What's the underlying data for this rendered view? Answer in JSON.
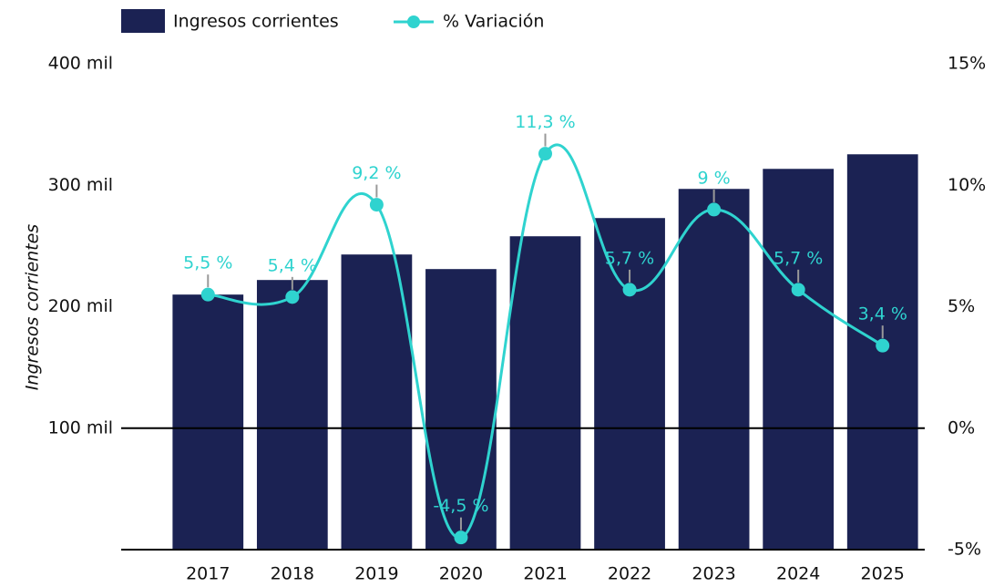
{
  "chart_data": {
    "type": "bar-line",
    "y_label": "Ingresos corrientes",
    "categories": [
      "2017",
      "2018",
      "2019",
      "2020",
      "2021",
      "2022",
      "2023",
      "2024",
      "2025"
    ],
    "series": [
      {
        "name": "Ingresos corrientes",
        "type": "bar",
        "color": "#1b2253",
        "values": [
          210000,
          222000,
          243000,
          231000,
          258000,
          273000,
          297000,
          313500,
          325500
        ]
      },
      {
        "name": "% Variación",
        "type": "line",
        "axis": "y2",
        "color": "#2fd3cf",
        "values": [
          5.5,
          5.4,
          9.2,
          -4.5,
          11.3,
          5.7,
          9,
          5.7,
          3.4
        ],
        "value_labels": [
          "5,5 %",
          "5,4 %",
          "9,2 %",
          "-4,5 %",
          "11,3 %",
          "5,7 %",
          "9 %",
          "5,7 %",
          "3,4 %"
        ]
      }
    ],
    "ylim": [
      0,
      400000
    ],
    "yticks": [
      {
        "value": 100000,
        "label": "100 mil"
      },
      {
        "value": 200000,
        "label": "200 mil"
      },
      {
        "value": 300000,
        "label": "300 mil"
      },
      {
        "value": 400000,
        "label": "400 mil"
      }
    ],
    "y2lim": [
      -5,
      15
    ],
    "y2ticks": [
      {
        "value": -5,
        "label": "-5%"
      },
      {
        "value": 0,
        "label": "0%"
      },
      {
        "value": 5,
        "label": "5%"
      },
      {
        "value": 10,
        "label": "10%"
      },
      {
        "value": 15,
        "label": "15%"
      }
    ],
    "legend": "top-left"
  }
}
